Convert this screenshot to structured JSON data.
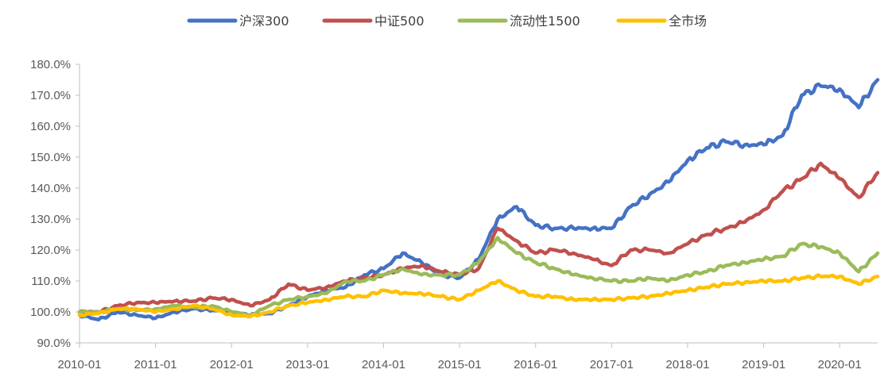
{
  "chart_data": {
    "type": "line",
    "title": "",
    "xlabel": "",
    "ylabel": "",
    "ylim": [
      0.9,
      1.8
    ],
    "yticks": [
      "90.0%",
      "100.0%",
      "110.0%",
      "120.0%",
      "130.0%",
      "140.0%",
      "150.0%",
      "160.0%",
      "170.0%",
      "180.0%"
    ],
    "xticks": [
      "2010-01",
      "2011-01",
      "2012-01",
      "2013-01",
      "2014-01",
      "2015-01",
      "2016-01",
      "2017-01",
      "2018-01",
      "2019-01",
      "2020-01"
    ],
    "xrange": [
      "2010-01",
      "2020-07"
    ],
    "legend_position": "top",
    "x": [
      "2010-01",
      "2010-04",
      "2010-07",
      "2010-10",
      "2011-01",
      "2011-04",
      "2011-07",
      "2011-10",
      "2012-01",
      "2012-04",
      "2012-07",
      "2012-10",
      "2013-01",
      "2013-04",
      "2013-07",
      "2013-10",
      "2014-01",
      "2014-04",
      "2014-07",
      "2014-10",
      "2015-01",
      "2015-04",
      "2015-07",
      "2015-10",
      "2016-01",
      "2016-04",
      "2016-07",
      "2016-10",
      "2017-01",
      "2017-04",
      "2017-07",
      "2017-10",
      "2018-01",
      "2018-04",
      "2018-07",
      "2018-10",
      "2019-01",
      "2019-04",
      "2019-07",
      "2019-10",
      "2020-01",
      "2020-04",
      "2020-07"
    ],
    "series": [
      {
        "name": "沪深300",
        "color": "#4472C4",
        "values": [
          0.99,
          0.975,
          1.0,
          0.99,
          0.98,
          1.0,
          1.01,
          1.005,
          1.0,
          0.99,
          0.995,
          1.02,
          1.05,
          1.07,
          1.08,
          1.12,
          1.14,
          1.19,
          1.16,
          1.12,
          1.11,
          1.17,
          1.3,
          1.34,
          1.28,
          1.27,
          1.27,
          1.27,
          1.27,
          1.34,
          1.38,
          1.42,
          1.49,
          1.53,
          1.55,
          1.54,
          1.54,
          1.57,
          1.7,
          1.73,
          1.72,
          1.66,
          1.75
        ]
      },
      {
        "name": "中证500",
        "color": "#C0504D",
        "values": [
          1.0,
          1.0,
          1.02,
          1.03,
          1.03,
          1.035,
          1.035,
          1.045,
          1.04,
          1.02,
          1.04,
          1.09,
          1.07,
          1.08,
          1.1,
          1.11,
          1.12,
          1.14,
          1.15,
          1.13,
          1.12,
          1.14,
          1.27,
          1.23,
          1.19,
          1.2,
          1.19,
          1.17,
          1.15,
          1.2,
          1.2,
          1.19,
          1.22,
          1.25,
          1.27,
          1.29,
          1.33,
          1.39,
          1.43,
          1.48,
          1.43,
          1.37,
          1.45
        ]
      },
      {
        "name": "流动性1500",
        "color": "#9BBB59",
        "values": [
          1.0,
          1.0,
          1.01,
          1.005,
          1.01,
          1.02,
          1.015,
          1.02,
          1.0,
          0.99,
          1.02,
          1.04,
          1.05,
          1.06,
          1.1,
          1.1,
          1.12,
          1.14,
          1.12,
          1.12,
          1.12,
          1.16,
          1.24,
          1.19,
          1.16,
          1.14,
          1.12,
          1.11,
          1.1,
          1.1,
          1.11,
          1.1,
          1.12,
          1.13,
          1.15,
          1.16,
          1.17,
          1.18,
          1.22,
          1.21,
          1.19,
          1.13,
          1.19
        ]
      },
      {
        "name": "全市场",
        "color": "#FFC000",
        "values": [
          0.99,
          0.995,
          1.01,
          1.01,
          1.0,
          1.01,
          1.02,
          1.01,
          0.99,
          0.985,
          1.0,
          1.02,
          1.03,
          1.04,
          1.05,
          1.05,
          1.07,
          1.06,
          1.06,
          1.05,
          1.04,
          1.07,
          1.1,
          1.07,
          1.05,
          1.05,
          1.04,
          1.04,
          1.04,
          1.045,
          1.05,
          1.06,
          1.07,
          1.08,
          1.09,
          1.095,
          1.1,
          1.1,
          1.11,
          1.115,
          1.115,
          1.09,
          1.115
        ]
      }
    ]
  }
}
